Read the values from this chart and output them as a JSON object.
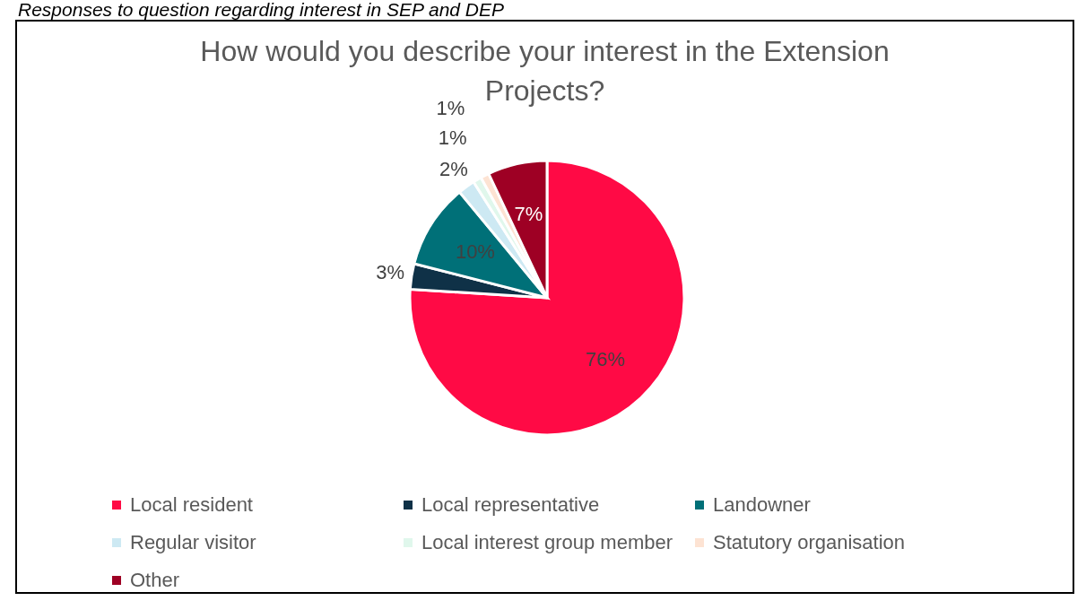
{
  "chart_data": {
    "type": "pie",
    "title": "How would you describe your interest in the Extension Projects?",
    "annotations": [
      "Responses to question regarding interest in SEP and DEP"
    ],
    "categories": [
      "Local resident",
      "Local representative",
      "Landowner",
      "Regular visitor",
      "Local interest group member",
      "Statutory organisation",
      "Other"
    ],
    "values": [
      76,
      3,
      10,
      2,
      1,
      1,
      7
    ],
    "value_labels": [
      "76%",
      "3%",
      "10%",
      "2%",
      "1%",
      "1%",
      "7%"
    ],
    "colors": [
      "#ff0a45",
      "#0f3147",
      "#007078",
      "#cde9f3",
      "#e0f7ec",
      "#fde3d3",
      "#9e0024"
    ],
    "legend": "bottom"
  }
}
